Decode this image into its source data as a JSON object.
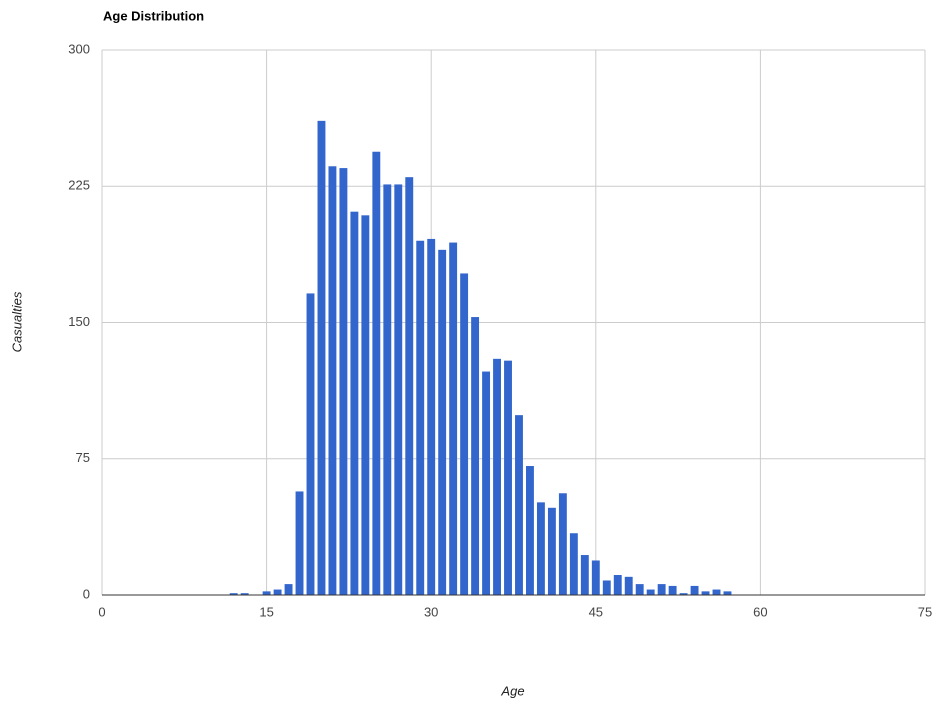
{
  "chart_data": {
    "type": "bar",
    "title": "Age Distribution",
    "x_label": "Age",
    "y_label": "Casualties",
    "x": [
      12,
      13,
      15,
      16,
      17,
      18,
      19,
      20,
      21,
      22,
      23,
      24,
      25,
      26,
      27,
      28,
      29,
      30,
      31,
      32,
      33,
      34,
      35,
      36,
      37,
      38,
      39,
      40,
      41,
      42,
      43,
      44,
      45,
      46,
      47,
      48,
      49,
      50,
      51,
      52,
      53,
      54,
      55,
      56,
      57
    ],
    "values": [
      1,
      1,
      2,
      3,
      6,
      57,
      166,
      261,
      236,
      235,
      211,
      209,
      244,
      226,
      226,
      230,
      195,
      196,
      190,
      194,
      177,
      153,
      123,
      130,
      129,
      99,
      71,
      51,
      48,
      56,
      34,
      22,
      19,
      8,
      11,
      10,
      6,
      3,
      6,
      5,
      1,
      5,
      2,
      3,
      2
    ],
    "color": "#3366cc",
    "xlim": [
      0,
      75
    ],
    "xticks": [
      0,
      15,
      30,
      45,
      60,
      75
    ],
    "ylim": [
      0,
      300
    ],
    "yticks": [
      0,
      75,
      150,
      225,
      300
    ],
    "grid": true
  }
}
